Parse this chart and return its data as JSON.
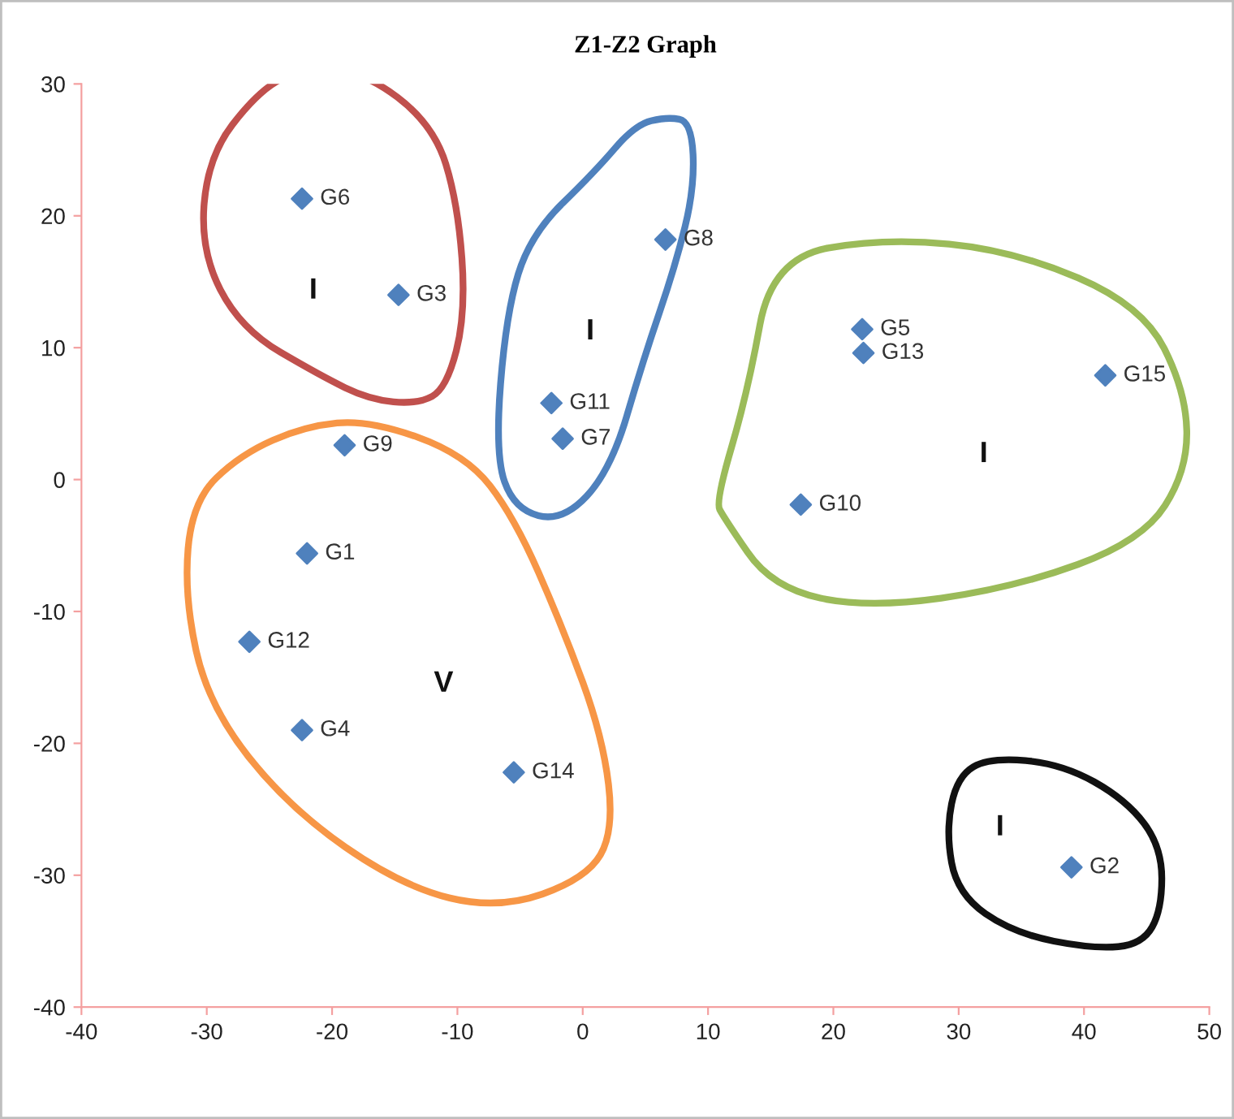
{
  "chart_data": {
    "type": "scatter",
    "title": "Z1-Z2 Graph",
    "x": [
      -22.0,
      39.0,
      -14.7,
      -22.4,
      22.3,
      -22.4,
      -1.6,
      6.6,
      -19.0,
      17.4,
      -2.5,
      -26.6,
      22.4,
      -5.5,
      41.7
    ],
    "series": [
      {
        "color": "#4f81bd",
        "values": [
          -5.6,
          -29.4,
          14.0,
          -19.0,
          11.4,
          21.3,
          3.1,
          18.2,
          2.6,
          -1.9,
          5.8,
          -12.3,
          9.6,
          -22.2,
          7.9
        ]
      }
    ],
    "marker": "diamond",
    "grid": false,
    "xlim": [
      -40,
      50
    ],
    "ylim": [
      -40,
      30
    ],
    "xticks": [
      -40,
      -30,
      -20,
      -10,
      0,
      10,
      20,
      30,
      40,
      50
    ],
    "yticks": [
      -40,
      -30,
      -20,
      -10,
      0,
      10,
      20,
      30
    ],
    "annotations": [
      {
        "text": "G1",
        "x": -22.0,
        "y": -5.6
      },
      {
        "text": "G2",
        "x": 39.0,
        "y": -29.4
      },
      {
        "text": "G3",
        "x": -14.7,
        "y": 14.0
      },
      {
        "text": "G4",
        "x": -22.4,
        "y": -19.0
      },
      {
        "text": "G5",
        "x": 22.3,
        "y": 11.4
      },
      {
        "text": "G6",
        "x": -22.4,
        "y": 21.3
      },
      {
        "text": "G7",
        "x": -1.6,
        "y": 3.1
      },
      {
        "text": "G8",
        "x": 6.6,
        "y": 18.2
      },
      {
        "text": "G9",
        "x": -19.0,
        "y": 2.6
      },
      {
        "text": "G10",
        "x": 17.4,
        "y": -1.9
      },
      {
        "text": "G11",
        "x": -2.5,
        "y": 5.8
      },
      {
        "text": "G12",
        "x": -26.6,
        "y": -12.3
      },
      {
        "text": "G13",
        "x": 22.4,
        "y": 9.6
      },
      {
        "text": "G14",
        "x": -5.5,
        "y": -22.2
      },
      {
        "text": "G15",
        "x": 41.7,
        "y": 7.9
      },
      "I",
      "I",
      "I",
      "V",
      "I"
    ]
  }
}
